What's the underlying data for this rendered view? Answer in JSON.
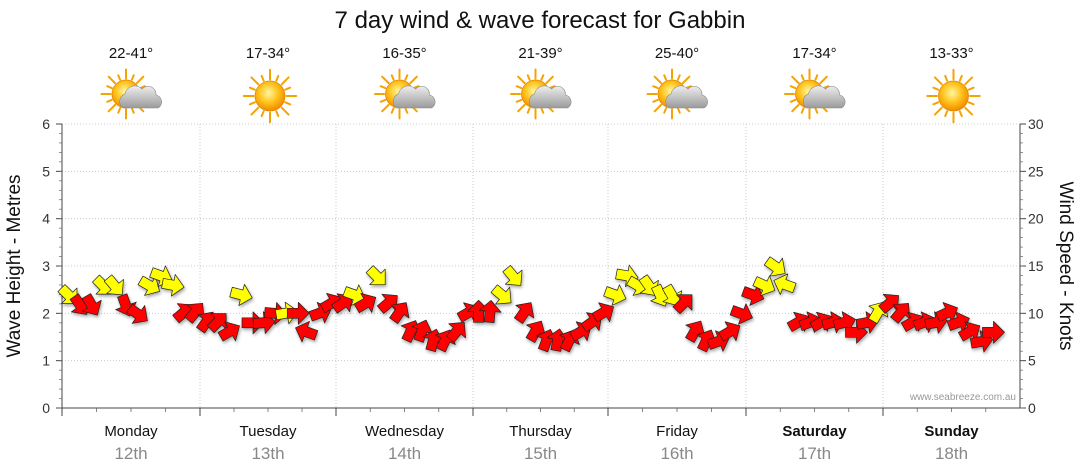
{
  "chart_data": {
    "type": "scatter",
    "title": "7 day wind & wave forecast for Gabbin",
    "ylabel_left": "Wave Height - Metres",
    "ylabel_right": "Wind Speed - Knots",
    "ylim_left": [
      0,
      6
    ],
    "ylim_right": [
      0,
      30
    ],
    "yticks_left": [
      "0",
      "1",
      "2",
      "3",
      "4",
      "5",
      "6"
    ],
    "yticks_right": [
      "0",
      "5",
      "10",
      "15",
      "20",
      "25",
      "30"
    ],
    "grid": true,
    "watermark": "www.seabreeze.com.au",
    "days": [
      {
        "name": "Monday",
        "date": "12th",
        "temp": "22-41°",
        "weather": "partly-cloudy",
        "bold": false
      },
      {
        "name": "Tuesday",
        "date": "13th",
        "temp": "17-34°",
        "weather": "sunny",
        "bold": false
      },
      {
        "name": "Wednesday",
        "date": "14th",
        "temp": "16-35°",
        "weather": "partly-cloudy",
        "bold": false
      },
      {
        "name": "Thursday",
        "date": "15th",
        "temp": "21-39°",
        "weather": "partly-cloudy",
        "bold": false
      },
      {
        "name": "Friday",
        "date": "16th",
        "temp": "25-40°",
        "weather": "partly-cloudy",
        "bold": false
      },
      {
        "name": "Saturday",
        "date": "17th",
        "temp": "17-34°",
        "weather": "partly-cloudy",
        "bold": true
      },
      {
        "name": "Sunday",
        "date": "18th",
        "temp": "13-33°",
        "weather": "sunny",
        "bold": true
      }
    ],
    "wind_colors": {
      "strong": "#ff0000",
      "moderate": "#ffff00"
    },
    "wind": [
      {
        "day": 0,
        "hour": 0,
        "knots": 12,
        "dir": 225,
        "color": "yellow"
      },
      {
        "day": 0,
        "hour": 2,
        "knots": 11,
        "dir": 235,
        "color": "red"
      },
      {
        "day": 0,
        "hour": 4,
        "knots": 11,
        "dir": 240,
        "color": "red"
      },
      {
        "day": 0,
        "hour": 6,
        "knots": 13,
        "dir": 225,
        "color": "yellow"
      },
      {
        "day": 0,
        "hour": 8,
        "knots": 13,
        "dir": 230,
        "color": "yellow"
      },
      {
        "day": 0,
        "hour": 10,
        "knots": 11,
        "dir": 250,
        "color": "red"
      },
      {
        "day": 0,
        "hour": 12,
        "knots": 10,
        "dir": 215,
        "color": "red"
      },
      {
        "day": 0,
        "hour": 14,
        "knots": 13,
        "dir": 210,
        "color": "yellow"
      },
      {
        "day": 0,
        "hour": 16,
        "knots": 14,
        "dir": 200,
        "color": "yellow"
      },
      {
        "day": 0,
        "hour": 18,
        "knots": 13,
        "dir": 190,
        "color": "yellow"
      },
      {
        "day": 0,
        "hour": 20,
        "knots": 10,
        "dir": 140,
        "color": "red"
      },
      {
        "day": 0,
        "hour": 22,
        "knots": 10,
        "dir": 130,
        "color": "red"
      },
      {
        "day": 1,
        "hour": 0,
        "knots": 9,
        "dir": 125,
        "color": "red"
      },
      {
        "day": 1,
        "hour": 2,
        "knots": 9,
        "dir": 135,
        "color": "red"
      },
      {
        "day": 1,
        "hour": 4,
        "knots": 8,
        "dir": 150,
        "color": "red"
      },
      {
        "day": 1,
        "hour": 6,
        "knots": 12,
        "dir": 195,
        "color": "yellow"
      },
      {
        "day": 1,
        "hour": 8,
        "knots": 9,
        "dir": 180,
        "color": "red"
      },
      {
        "day": 1,
        "hour": 10,
        "knots": 9,
        "dir": 175,
        "color": "red"
      },
      {
        "day": 1,
        "hour": 12,
        "knots": 10,
        "dir": 185,
        "color": "red"
      },
      {
        "day": 1,
        "hour": 14,
        "knots": 10,
        "dir": 170,
        "color": "yellow"
      },
      {
        "day": 1,
        "hour": 16,
        "knots": 10,
        "dir": 180,
        "color": "red"
      },
      {
        "day": 1,
        "hour": 18,
        "knots": 8,
        "dir": 20,
        "color": "red"
      },
      {
        "day": 1,
        "hour": 20,
        "knots": 10,
        "dir": 160,
        "color": "red"
      },
      {
        "day": 1,
        "hour": 22,
        "knots": 11,
        "dir": 150,
        "color": "red"
      },
      {
        "day": 2,
        "hour": 0,
        "knots": 11,
        "dir": 145,
        "color": "red"
      },
      {
        "day": 2,
        "hour": 2,
        "knots": 12,
        "dir": 200,
        "color": "yellow"
      },
      {
        "day": 2,
        "hour": 4,
        "knots": 11,
        "dir": 150,
        "color": "red"
      },
      {
        "day": 2,
        "hour": 6,
        "knots": 14,
        "dir": 225,
        "color": "yellow"
      },
      {
        "day": 2,
        "hour": 8,
        "knots": 11,
        "dir": 140,
        "color": "red"
      },
      {
        "day": 2,
        "hour": 10,
        "knots": 10,
        "dir": 125,
        "color": "red"
      },
      {
        "day": 2,
        "hour": 12,
        "knots": 8,
        "dir": 115,
        "color": "red"
      },
      {
        "day": 2,
        "hour": 14,
        "knots": 8,
        "dir": 110,
        "color": "red"
      },
      {
        "day": 2,
        "hour": 16,
        "knots": 7,
        "dir": 105,
        "color": "red"
      },
      {
        "day": 2,
        "hour": 18,
        "knots": 7,
        "dir": 115,
        "color": "red"
      },
      {
        "day": 2,
        "hour": 20,
        "knots": 8,
        "dir": 130,
        "color": "red"
      },
      {
        "day": 2,
        "hour": 22,
        "knots": 10,
        "dir": 150,
        "color": "red"
      },
      {
        "day": 3,
        "hour": 0,
        "knots": 10,
        "dir": 90,
        "color": "red"
      },
      {
        "day": 3,
        "hour": 2,
        "knots": 10,
        "dir": 95,
        "color": "red"
      },
      {
        "day": 3,
        "hour": 4,
        "knots": 12,
        "dir": 220,
        "color": "yellow"
      },
      {
        "day": 3,
        "hour": 6,
        "knots": 14,
        "dir": 230,
        "color": "yellow"
      },
      {
        "day": 3,
        "hour": 8,
        "knots": 10,
        "dir": 125,
        "color": "red"
      },
      {
        "day": 3,
        "hour": 10,
        "knots": 8,
        "dir": 120,
        "color": "red"
      },
      {
        "day": 3,
        "hour": 12,
        "knots": 7,
        "dir": 110,
        "color": "red"
      },
      {
        "day": 3,
        "hour": 14,
        "knots": 7,
        "dir": 100,
        "color": "red"
      },
      {
        "day": 3,
        "hour": 16,
        "knots": 7,
        "dir": 115,
        "color": "red"
      },
      {
        "day": 3,
        "hour": 18,
        "knots": 8,
        "dir": 150,
        "color": "red"
      },
      {
        "day": 3,
        "hour": 20,
        "knots": 9,
        "dir": 145,
        "color": "red"
      },
      {
        "day": 3,
        "hour": 22,
        "knots": 10,
        "dir": 150,
        "color": "red"
      },
      {
        "day": 4,
        "hour": 0,
        "knots": 12,
        "dir": 200,
        "color": "yellow"
      },
      {
        "day": 4,
        "hour": 2,
        "knots": 14,
        "dir": 190,
        "color": "yellow"
      },
      {
        "day": 4,
        "hour": 4,
        "knots": 13,
        "dir": 210,
        "color": "yellow"
      },
      {
        "day": 4,
        "hour": 6,
        "knots": 13,
        "dir": 235,
        "color": "yellow"
      },
      {
        "day": 4,
        "hour": 8,
        "knots": 12,
        "dir": 245,
        "color": "yellow"
      },
      {
        "day": 4,
        "hour": 10,
        "knots": 12,
        "dir": 240,
        "color": "yellow"
      },
      {
        "day": 4,
        "hour": 12,
        "knots": 11,
        "dir": 135,
        "color": "red"
      },
      {
        "day": 4,
        "hour": 14,
        "knots": 8,
        "dir": 120,
        "color": "red"
      },
      {
        "day": 4,
        "hour": 16,
        "knots": 7,
        "dir": 115,
        "color": "red"
      },
      {
        "day": 4,
        "hour": 18,
        "knots": 7,
        "dir": 160,
        "color": "red"
      },
      {
        "day": 4,
        "hour": 20,
        "knots": 8,
        "dir": 150,
        "color": "red"
      },
      {
        "day": 4,
        "hour": 22,
        "knots": 10,
        "dir": 200,
        "color": "red"
      },
      {
        "day": 5,
        "hour": 0,
        "knots": 12,
        "dir": 200,
        "color": "red"
      },
      {
        "day": 5,
        "hour": 2,
        "knots": 13,
        "dir": 205,
        "color": "yellow"
      },
      {
        "day": 5,
        "hour": 4,
        "knots": 15,
        "dir": 215,
        "color": "yellow"
      },
      {
        "day": 5,
        "hour": 6,
        "knots": 13,
        "dir": 20,
        "color": "yellow"
      },
      {
        "day": 5,
        "hour": 8,
        "knots": 9,
        "dir": 150,
        "color": "red"
      },
      {
        "day": 5,
        "hour": 10,
        "knots": 9,
        "dir": 160,
        "color": "red"
      },
      {
        "day": 5,
        "hour": 12,
        "knots": 9,
        "dir": 150,
        "color": "red"
      },
      {
        "day": 5,
        "hour": 14,
        "knots": 9,
        "dir": 165,
        "color": "red"
      },
      {
        "day": 5,
        "hour": 16,
        "knots": 9,
        "dir": 165,
        "color": "red"
      },
      {
        "day": 5,
        "hour": 18,
        "knots": 8,
        "dir": 180,
        "color": "red"
      },
      {
        "day": 5,
        "hour": 20,
        "knots": 9,
        "dir": 170,
        "color": "red"
      },
      {
        "day": 5,
        "hour": 22,
        "knots": 10,
        "dir": 120,
        "color": "yellow"
      },
      {
        "day": 6,
        "hour": 0,
        "knots": 11,
        "dir": 140,
        "color": "red"
      },
      {
        "day": 6,
        "hour": 2,
        "knots": 10,
        "dir": 130,
        "color": "red"
      },
      {
        "day": 6,
        "hour": 4,
        "knots": 9,
        "dir": 150,
        "color": "red"
      },
      {
        "day": 6,
        "hour": 6,
        "knots": 9,
        "dir": 160,
        "color": "red"
      },
      {
        "day": 6,
        "hour": 8,
        "knots": 9,
        "dir": 170,
        "color": "red"
      },
      {
        "day": 6,
        "hour": 10,
        "knots": 10,
        "dir": 155,
        "color": "red"
      },
      {
        "day": 6,
        "hour": 12,
        "knots": 9,
        "dir": 160,
        "color": "red"
      },
      {
        "day": 6,
        "hour": 14,
        "knots": 8,
        "dir": 150,
        "color": "red"
      },
      {
        "day": 6,
        "hour": 16,
        "knots": 7,
        "dir": 170,
        "color": "red"
      },
      {
        "day": 6,
        "hour": 18,
        "knots": 8,
        "dir": 180,
        "color": "red"
      }
    ]
  }
}
